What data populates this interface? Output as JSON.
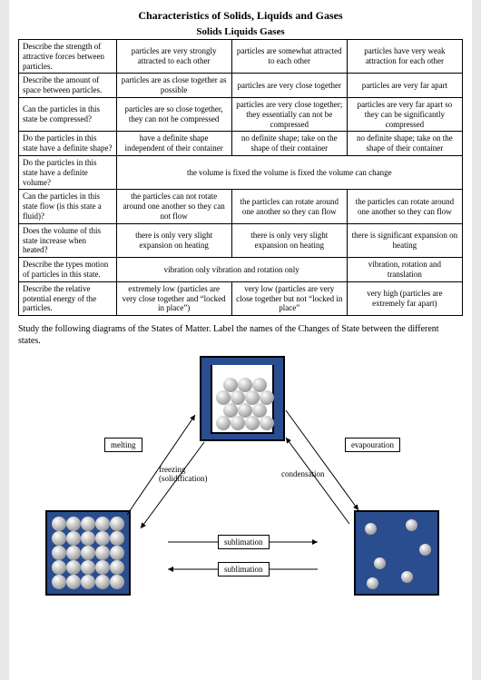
{
  "title": "Characteristics of Solids, Liquids and Gases",
  "subhead": "Solids Liquids Gases",
  "rows": [
    {
      "label": "Describe the strength of attractive forces between particles.",
      "c1": "particles are very strongly attracted to each other",
      "c2": "particles are somewhat attracted to each other",
      "c3": "particles have very weak attraction for each other"
    },
    {
      "label": "Describe the amount of space between particles.",
      "c1": "particles are as close together as possible",
      "c2": "particles are very close together",
      "c3": "particles are very far apart"
    },
    {
      "label": "Can the particles in this state be compressed?",
      "c1": "particles are so close together, they can not be compressed",
      "c2": "particles are very close together; they essentially can not be compressed",
      "c3": "particles are very far apart so they can be significantly compressed"
    },
    {
      "label": "Do the particles in this state have a definite shape?",
      "c1": "have a definite shape independent of their container",
      "c2": "no definite shape; take on the shape of their container",
      "c3": "no definite shape; take on the shape of their container"
    },
    {
      "label": "Do the particles in this state have a definite volume?",
      "merged": "the volume is fixed the volume is fixed the volume can change"
    },
    {
      "label": "Can the particles in this state flow (is this state a fluid)?",
      "c1": "the particles can not rotate around one another so they can not flow",
      "c2": "the particles can rotate around one another so they can flow",
      "c3": "the particles can rotate around one another so they can flow"
    },
    {
      "label": "Does the volume of this state increase when heated?",
      "c1": "there is only very slight expansion on heating",
      "c2": "there is only very slight expansion on heating",
      "c3": "there is significant expansion on heating"
    },
    {
      "label": "Describe the types motion of particles in this state.",
      "merged2_c12": "vibration only vibration and rotation only",
      "c3": "vibration, rotation and translation"
    },
    {
      "label": "Describe the relative potential energy of the particles.",
      "c1": "extremely low (particles are very close together and “locked in place”)",
      "c2": "very low (particles are very close together but not “locked in place”",
      "c3": "very high (particles are extremely far apart)"
    }
  ],
  "instruction": "Study the following diagrams of the States of Matter. Label the names of the Changes of State between the different states.",
  "labels": {
    "melting": "melting",
    "freezing": "freezing (solidification)",
    "evaporation": "evapouration",
    "condensation": "condensation",
    "sublimation1": "sublimation",
    "sublimation2": "sublimation"
  },
  "colors": {
    "page_bg": "#ffffff",
    "outer_bg": "#e8e8e8",
    "diagram_bg": "#2a4d8f",
    "border": "#000000"
  }
}
